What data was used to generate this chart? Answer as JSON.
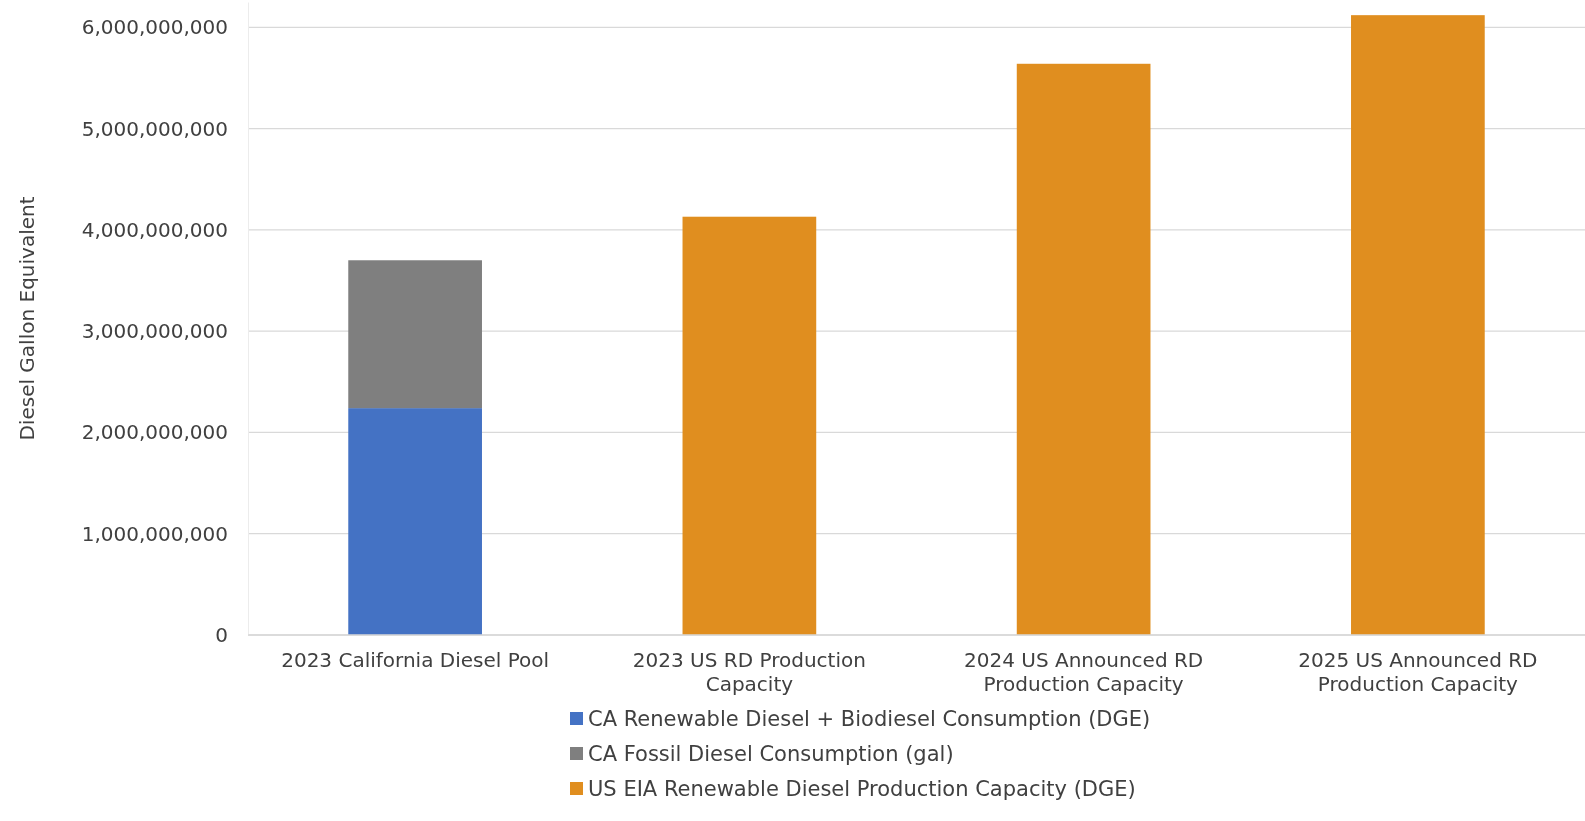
{
  "chart_data": {
    "type": "bar",
    "stacked": true,
    "ylabel": "Diesel Gallon Equivalent",
    "categories": [
      "2023 California Diesel Pool",
      "2023 US RD Production Capacity",
      "2024 US Announced RD Production Capacity",
      "2025 US Announced RD Production Capacity"
    ],
    "series": [
      {
        "name": "CA Renewable Diesel + Biodiesel Consumption (DGE)",
        "color": "#4472c4",
        "values": [
          2240000000,
          null,
          null,
          null
        ]
      },
      {
        "name": "CA Fossil Diesel Consumption (gal)",
        "color": "#7f7f7f",
        "values": [
          1460000000,
          null,
          null,
          null
        ]
      },
      {
        "name": "US EIA Renewable Diesel Production Capacity (DGE)",
        "color": "#e08e1f",
        "values": [
          null,
          4130000000,
          5640000000,
          6120000000
        ]
      }
    ],
    "ylim": [
      0,
      6250000000
    ],
    "yticks": [
      {
        "value": 0,
        "label": "0"
      },
      {
        "value": 1000000000,
        "label": "1,000,000,000"
      },
      {
        "value": 2000000000,
        "label": "2,000,000,000"
      },
      {
        "value": 3000000000,
        "label": "3,000,000,000"
      },
      {
        "value": 4000000000,
        "label": "4,000,000,000"
      },
      {
        "value": 5000000000,
        "label": "5,000,000,000"
      },
      {
        "value": 6000000000,
        "label": "6,000,000,000"
      }
    ],
    "grid": "y",
    "legend": "bottom"
  }
}
